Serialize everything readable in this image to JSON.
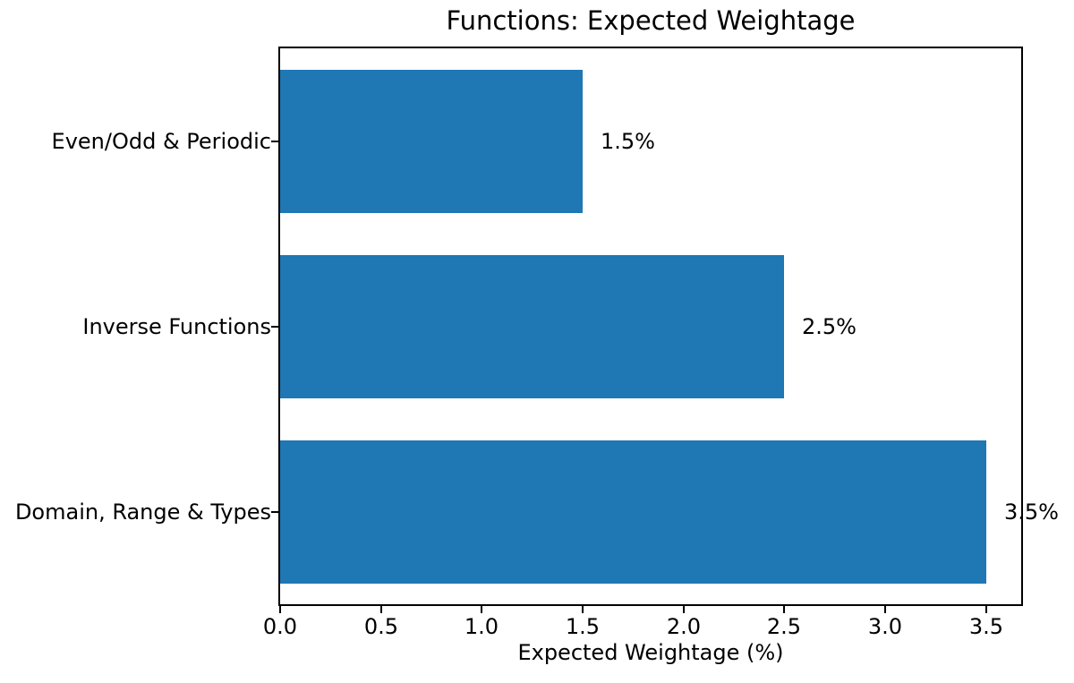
{
  "chart_data": {
    "type": "bar",
    "orientation": "horizontal",
    "title": "Functions: Expected Weightage",
    "xlabel": "Expected Weightage (%)",
    "categories_top_to_bottom": [
      "Even/Odd & Periodic",
      "Inverse Functions",
      "Domain, Range & Types"
    ],
    "values": [
      1.5,
      2.5,
      3.5
    ],
    "bar_labels": [
      "1.5%",
      "2.5%",
      "3.5%"
    ],
    "x_tick_labels": [
      "0.0",
      "0.5",
      "1.0",
      "1.5",
      "2.0",
      "2.5",
      "3.0",
      "3.5"
    ],
    "x_tick_values": [
      0,
      0.5,
      1.0,
      1.5,
      2.0,
      2.5,
      3.0,
      3.5
    ],
    "xlim": [
      0,
      3.675
    ],
    "bar_color": "#1f77b4",
    "text_color": "#000000",
    "grid": false,
    "legend": "none"
  }
}
